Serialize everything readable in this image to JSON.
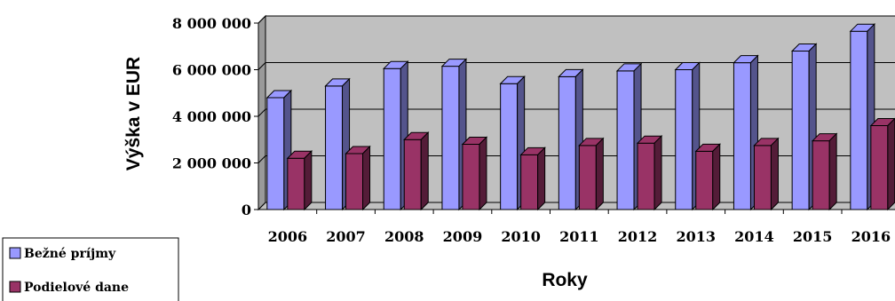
{
  "chart_data": {
    "type": "bar",
    "ylabel": "Výška v EUR",
    "xlabel": "Roky",
    "categories": [
      "2006",
      "2007",
      "2008",
      "2009",
      "2010",
      "2011",
      "2012",
      "2013",
      "2014",
      "2015",
      "2016"
    ],
    "ylim": [
      0,
      8000000
    ],
    "yticks": [
      0,
      2000000,
      4000000,
      6000000,
      8000000
    ],
    "ytick_labels": [
      "0",
      "2 000 000",
      "4 000 000",
      "6 000 000",
      "8 000 000"
    ],
    "grid": true,
    "legend_position": "bottom-left",
    "series": [
      {
        "name": "Bežné príjmy",
        "color": "#9999ff",
        "values": [
          4800000,
          5300000,
          6050000,
          6150000,
          5400000,
          5700000,
          5950000,
          6000000,
          6300000,
          6800000,
          7650000
        ]
      },
      {
        "name": "Podielové dane",
        "color": "#993366",
        "values": [
          2200000,
          2400000,
          3000000,
          2800000,
          2350000,
          2750000,
          2850000,
          2500000,
          2750000,
          2950000,
          3600000
        ]
      }
    ]
  }
}
